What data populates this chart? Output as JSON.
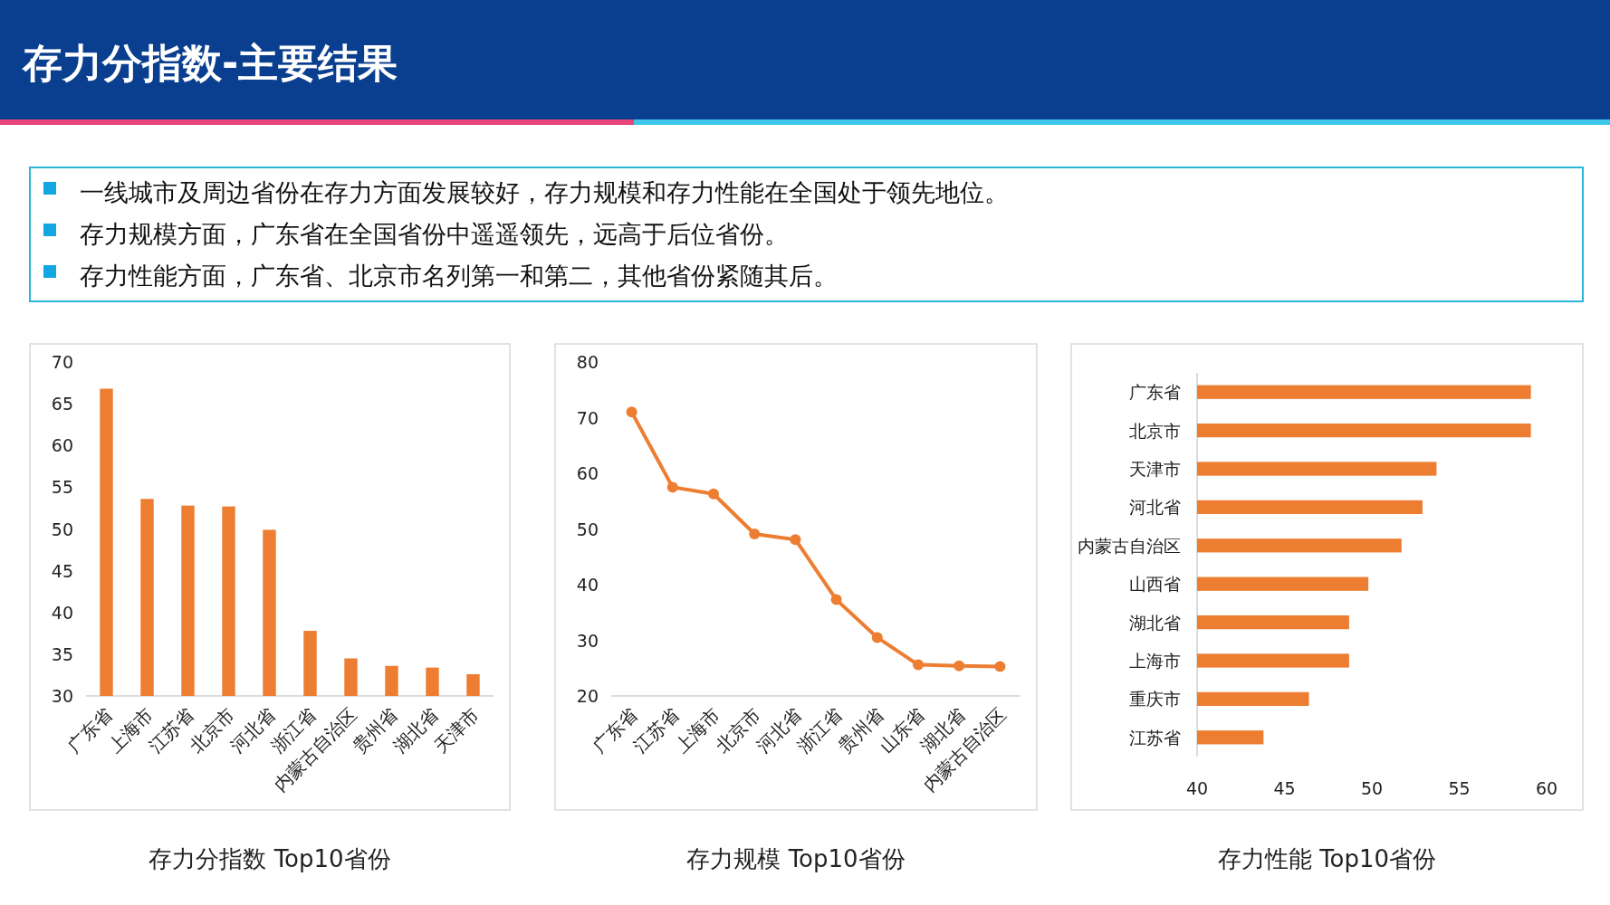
{
  "chart_data": [
    {
      "type": "other",
      "title": "存力分指数-主要结果",
      "annotations": [
        "一线城市及周边省份在存力方面发展较好，存力规模和存力性能在全国处于领先地位。",
        "存力规模方面，广东省在全国省份中遥遥领先，远高于后位省份。",
        "存力性能方面，广东省、北京市名列第一和第二，其他省份紧随其后。"
      ]
    },
    {
      "type": "bar",
      "title": "存力分指数 Top10省份",
      "categories": [
        "广东省",
        "上海市",
        "江苏省",
        "北京市",
        "河北省",
        "浙江省",
        "内蒙古自治区",
        "贵州省",
        "湖北省",
        "天津市"
      ],
      "values": [
        66.8,
        53.6,
        52.8,
        52.7,
        49.9,
        37.8,
        34.5,
        33.6,
        33.4,
        32.6
      ],
      "color": "#ed7d31",
      "ylim": [
        30,
        70
      ],
      "yticks": [
        30,
        35,
        40,
        45,
        50,
        55,
        60,
        65,
        70
      ]
    },
    {
      "type": "line",
      "title": "存力规模 Top10省份",
      "categories": [
        "广东省",
        "江苏省",
        "上海市",
        "北京市",
        "河北省",
        "浙江省",
        "贵州省",
        "山东省",
        "湖北省",
        "内蒙古自治区"
      ],
      "values": [
        71.0,
        57.5,
        56.3,
        49.1,
        48.1,
        37.3,
        30.5,
        25.6,
        25.4,
        25.3
      ],
      "color": "#ed7d31",
      "marker": "circle",
      "ylim": [
        20,
        80
      ],
      "yticks": [
        20,
        30,
        40,
        50,
        60,
        70,
        80
      ]
    },
    {
      "type": "bar",
      "orientation": "horizontal",
      "title": "存力性能 Top10省份",
      "categories": [
        "广东省",
        "北京市",
        "天津市",
        "河北省",
        "内蒙古自治区",
        "山西省",
        "湖北省",
        "上海市",
        "重庆市",
        "江苏省"
      ],
      "values": [
        59.1,
        59.1,
        53.7,
        52.9,
        51.7,
        49.8,
        48.7,
        48.7,
        46.4,
        43.8
      ],
      "color": "#ed7d31",
      "xlim": [
        40,
        60
      ],
      "xticks": [
        40,
        45,
        50,
        55,
        60
      ]
    }
  ]
}
